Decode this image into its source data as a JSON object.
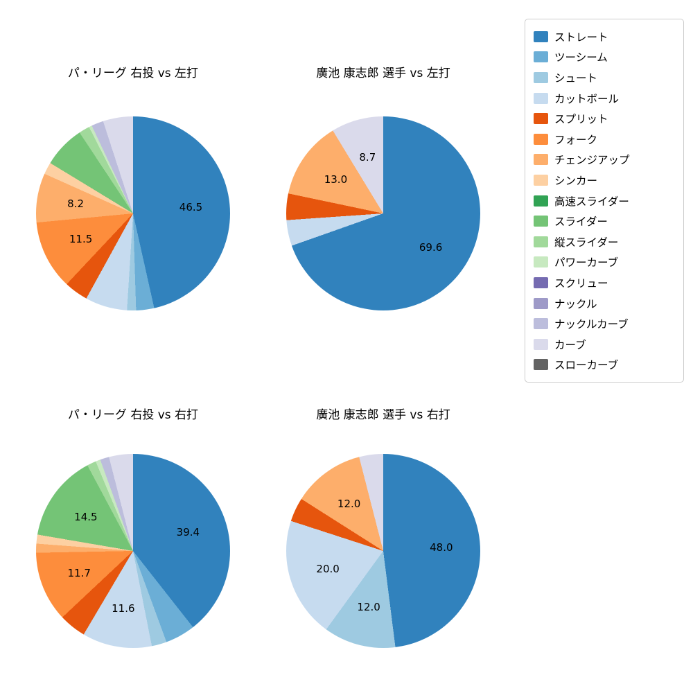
{
  "figure": {
    "background": "#ffffff"
  },
  "legend": {
    "items": [
      {
        "label": "ストレート",
        "color": "#3182bd"
      },
      {
        "label": "ツーシーム",
        "color": "#6baed6"
      },
      {
        "label": "シュート",
        "color": "#9ecae1"
      },
      {
        "label": "カットボール",
        "color": "#c6dbef"
      },
      {
        "label": "スプリット",
        "color": "#e6550d"
      },
      {
        "label": "フォーク",
        "color": "#fd8d3c"
      },
      {
        "label": "チェンジアップ",
        "color": "#fdae6b"
      },
      {
        "label": "シンカー",
        "color": "#fdd0a2"
      },
      {
        "label": "高速スライダー",
        "color": "#31a354"
      },
      {
        "label": "スライダー",
        "color": "#74c476"
      },
      {
        "label": "縦スライダー",
        "color": "#a1d99b"
      },
      {
        "label": "パワーカーブ",
        "color": "#c7e9c0"
      },
      {
        "label": "スクリュー",
        "color": "#756bb1"
      },
      {
        "label": "ナックル",
        "color": "#9e9ac8"
      },
      {
        "label": "ナックルカーブ",
        "color": "#bcbddc"
      },
      {
        "label": "カーブ",
        "color": "#dadaeb"
      },
      {
        "label": "スローカーブ",
        "color": "#636363"
      }
    ]
  },
  "chart_data": [
    {
      "type": "pie",
      "title": "パ・リーグ 右投 vs 左打",
      "start": "top",
      "direction": "clockwise",
      "label_distance": 0.6,
      "slices": [
        {
          "name": "ストレート",
          "value": 46.5,
          "label": "46.5"
        },
        {
          "name": "ツーシーム",
          "value": 3.0,
          "label": ""
        },
        {
          "name": "シュート",
          "value": 1.5,
          "label": ""
        },
        {
          "name": "カットボール",
          "value": 7.0,
          "label": ""
        },
        {
          "name": "スプリット",
          "value": 4.0,
          "label": ""
        },
        {
          "name": "フォーク",
          "value": 11.5,
          "label": "11.5"
        },
        {
          "name": "チェンジアップ",
          "value": 8.2,
          "label": "8.2"
        },
        {
          "name": "シンカー",
          "value": 2.0,
          "label": ""
        },
        {
          "name": "スライダー",
          "value": 7.0,
          "label": ""
        },
        {
          "name": "縦スライダー",
          "value": 1.8,
          "label": ""
        },
        {
          "name": "パワーカーブ",
          "value": 0.5,
          "label": ""
        },
        {
          "name": "ナックルカーブ",
          "value": 2.0,
          "label": ""
        },
        {
          "name": "カーブ",
          "value": 5.0,
          "label": ""
        }
      ]
    },
    {
      "type": "pie",
      "title": "廣池 康志郎 選手 vs 左打",
      "start": "top",
      "direction": "clockwise",
      "label_distance": 0.6,
      "slices": [
        {
          "name": "ストレート",
          "value": 69.6,
          "label": "69.6"
        },
        {
          "name": "カットボール",
          "value": 4.3,
          "label": ""
        },
        {
          "name": "スプリット",
          "value": 4.4,
          "label": ""
        },
        {
          "name": "チェンジアップ",
          "value": 13.0,
          "label": "13.0"
        },
        {
          "name": "カーブ",
          "value": 8.7,
          "label": "8.7"
        }
      ]
    },
    {
      "type": "pie",
      "title": "パ・リーグ 右投 vs 右打",
      "start": "top",
      "direction": "clockwise",
      "label_distance": 0.6,
      "slices": [
        {
          "name": "ストレート",
          "value": 39.4,
          "label": "39.4"
        },
        {
          "name": "ツーシーム",
          "value": 5.0,
          "label": ""
        },
        {
          "name": "シュート",
          "value": 2.5,
          "label": ""
        },
        {
          "name": "カットボール",
          "value": 11.6,
          "label": "11.6"
        },
        {
          "name": "スプリット",
          "value": 4.5,
          "label": ""
        },
        {
          "name": "フォーク",
          "value": 11.7,
          "label": "11.7"
        },
        {
          "name": "チェンジアップ",
          "value": 1.5,
          "label": ""
        },
        {
          "name": "シンカー",
          "value": 1.5,
          "label": ""
        },
        {
          "name": "スライダー",
          "value": 14.5,
          "label": "14.5"
        },
        {
          "name": "縦スライダー",
          "value": 1.5,
          "label": ""
        },
        {
          "name": "パワーカーブ",
          "value": 0.8,
          "label": ""
        },
        {
          "name": "ナックルカーブ",
          "value": 1.5,
          "label": ""
        },
        {
          "name": "カーブ",
          "value": 4.0,
          "label": ""
        }
      ]
    },
    {
      "type": "pie",
      "title": "廣池 康志郎 選手 vs 右打",
      "start": "top",
      "direction": "clockwise",
      "label_distance": 0.6,
      "slices": [
        {
          "name": "ストレート",
          "value": 48.0,
          "label": "48.0"
        },
        {
          "name": "シュート",
          "value": 12.0,
          "label": "12.0"
        },
        {
          "name": "カットボール",
          "value": 20.0,
          "label": "20.0"
        },
        {
          "name": "スプリット",
          "value": 4.0,
          "label": ""
        },
        {
          "name": "チェンジアップ",
          "value": 12.0,
          "label": "12.0"
        },
        {
          "name": "カーブ",
          "value": 4.0,
          "label": ""
        }
      ]
    }
  ]
}
